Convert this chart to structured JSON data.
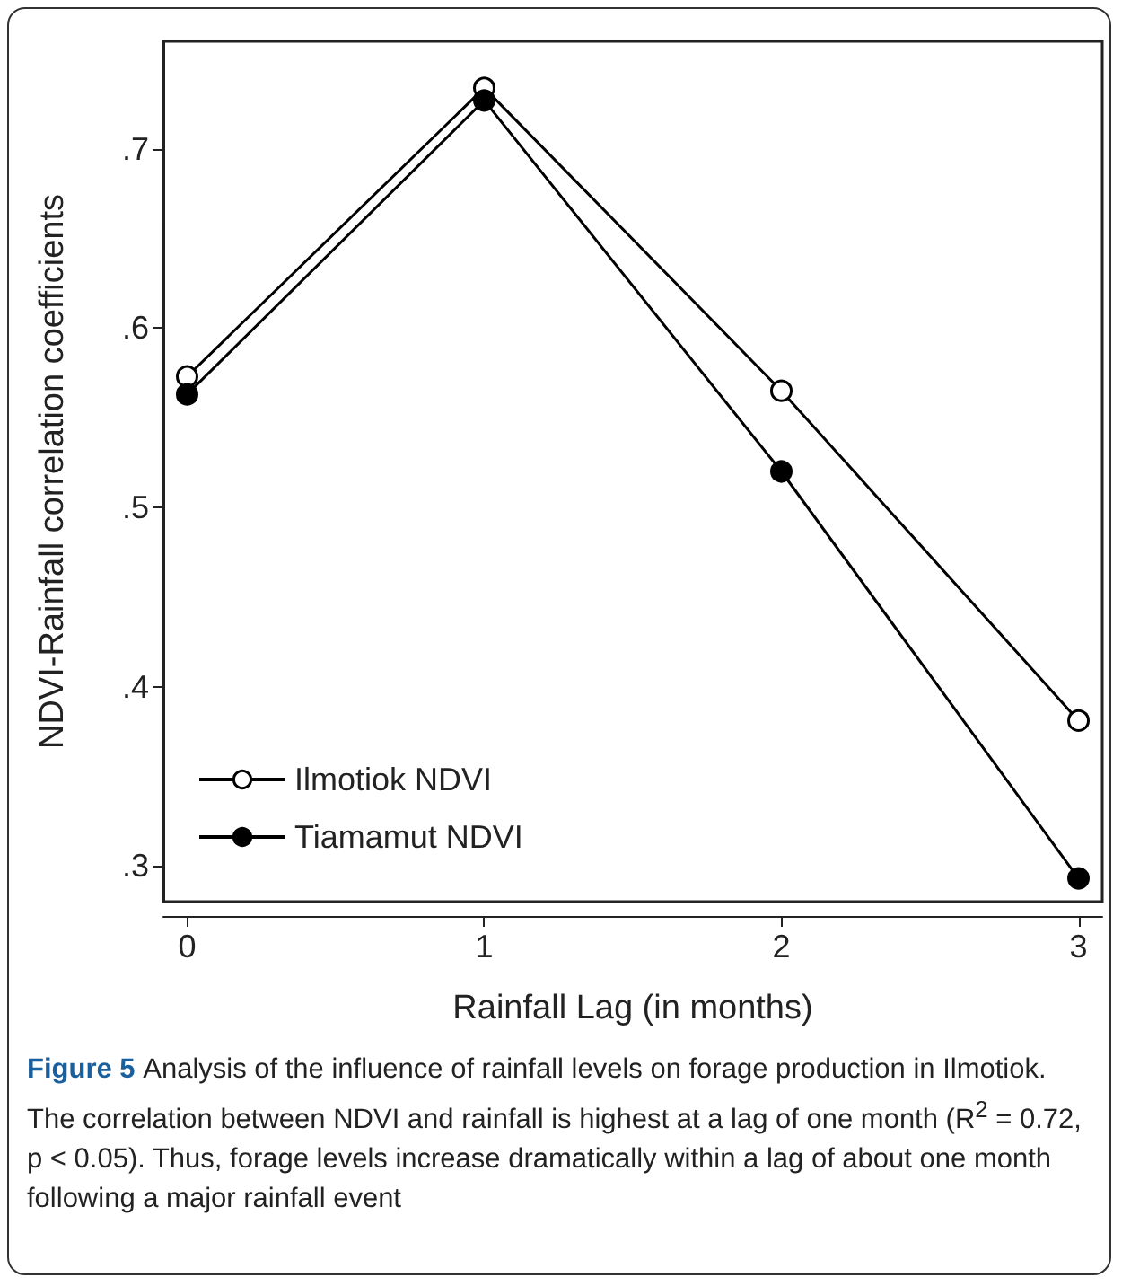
{
  "chart_data": {
    "type": "line",
    "xlabel": "Rainfall Lag (in months)",
    "ylabel": "NDVI-Rainfall correlation coefficients",
    "x": [
      0,
      1,
      2,
      3
    ],
    "series": [
      {
        "name": "Ilmotiok NDVI",
        "color": "#000000",
        "colors": [
          "#ffffff",
          "#ffffff",
          "#ffffff",
          "#ffffff"
        ],
        "values": [
          0.573,
          0.734,
          0.565,
          0.381
        ]
      },
      {
        "name": "Tiamamut NDVI",
        "color": "#000000",
        "values": [
          0.563,
          0.727,
          0.52,
          0.293
        ]
      }
    ],
    "xlim": [
      -0.08,
      3.08
    ],
    "xticks": [
      0,
      1,
      2,
      3
    ],
    "ylim": [
      0.28,
      0.76
    ],
    "yticks": [
      {
        "value": 0.3,
        "label": ".3"
      },
      {
        "value": 0.4,
        "label": ".4"
      },
      {
        "value": 0.5,
        "label": ".5"
      },
      {
        "value": 0.6,
        "label": ".6"
      },
      {
        "value": 0.7,
        "label": ".7"
      }
    ],
    "grid": false,
    "legend": "bottom left",
    "marker": "circle",
    "line_style": "solid",
    "annotations": [
      "Figure 5",
      "Analysis of the influence of rainfall levels on forage production in Ilmotiok. The correlation between NDVI and rainfall is highest at a lag of one month (R$^{2}$ = 0.72, p < 0.05). Thus, forage levels increase dramatically within a lag of about one month following a major rainfall event"
    ]
  }
}
